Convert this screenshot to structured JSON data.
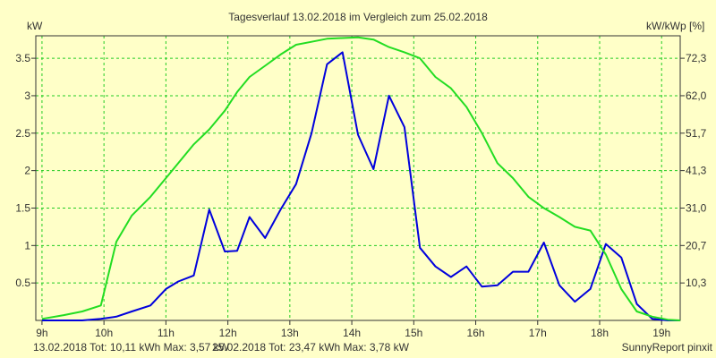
{
  "chart_data": {
    "type": "line",
    "title": "Tagesverlauf 13.02.2018 im Vergleich zum 25.02.2018",
    "ylabel_left": "kW",
    "ylabel_right": "kW/kWp [%]",
    "x_ticks": [
      "9h",
      "10h",
      "11h",
      "12h",
      "13h",
      "14h",
      "15h",
      "16h",
      "17h",
      "18h",
      "19h"
    ],
    "y_ticks_left": [
      "0.5",
      "1",
      "1.5",
      "2",
      "2.5",
      "3",
      "3.5"
    ],
    "y_ticks_right": [
      "10,3",
      "20,7",
      "31,0",
      "41,3",
      "51,7",
      "62,0",
      "72,3"
    ],
    "xlim": [
      8.9,
      19.3
    ],
    "ylim": [
      0,
      3.8
    ],
    "grid": true,
    "series": [
      {
        "name": "13.02.2018",
        "color": "#0000dd",
        "x": [
          9.0,
          9.35,
          9.65,
          9.95,
          10.2,
          10.45,
          10.75,
          11.0,
          11.2,
          11.45,
          11.7,
          11.95,
          12.15,
          12.35,
          12.6,
          12.85,
          13.1,
          13.35,
          13.6,
          13.85,
          14.1,
          14.35,
          14.6,
          14.85,
          15.1,
          15.35,
          15.6,
          15.85,
          16.1,
          16.35,
          16.6,
          16.85,
          17.1,
          17.35,
          17.6,
          17.85,
          18.1,
          18.35,
          18.6,
          18.85,
          19.1,
          19.3
        ],
        "y": [
          0.0,
          0.0,
          0.0,
          0.02,
          0.05,
          0.12,
          0.2,
          0.42,
          0.52,
          0.6,
          1.48,
          0.92,
          0.93,
          1.38,
          1.1,
          1.48,
          1.82,
          2.5,
          3.42,
          3.58,
          2.48,
          2.02,
          3.0,
          2.58,
          0.97,
          0.72,
          0.58,
          0.72,
          0.45,
          0.47,
          0.65,
          0.65,
          1.04,
          0.47,
          0.25,
          0.42,
          1.02,
          0.84,
          0.22,
          0.02,
          0.0,
          0.0
        ]
      },
      {
        "name": "25.02.2018",
        "color": "#22dd22",
        "x": [
          9.0,
          9.35,
          9.65,
          9.95,
          10.2,
          10.45,
          10.75,
          11.0,
          11.2,
          11.45,
          11.7,
          11.95,
          12.15,
          12.35,
          12.6,
          12.85,
          13.1,
          13.35,
          13.6,
          13.85,
          14.1,
          14.35,
          14.6,
          14.85,
          15.1,
          15.35,
          15.6,
          15.85,
          16.1,
          16.35,
          16.6,
          16.85,
          17.1,
          17.35,
          17.6,
          17.85,
          18.1,
          18.35,
          18.6,
          18.85,
          19.1,
          19.3
        ],
        "y": [
          0.02,
          0.07,
          0.12,
          0.2,
          1.05,
          1.4,
          1.65,
          1.9,
          2.1,
          2.35,
          2.55,
          2.8,
          3.05,
          3.25,
          3.4,
          3.55,
          3.68,
          3.72,
          3.76,
          3.77,
          3.78,
          3.75,
          3.65,
          3.58,
          3.5,
          3.25,
          3.1,
          2.85,
          2.5,
          2.1,
          1.9,
          1.65,
          1.5,
          1.38,
          1.25,
          1.2,
          0.88,
          0.42,
          0.12,
          0.05,
          0.01,
          0.0
        ]
      }
    ]
  },
  "footer": {
    "series1_text": "13.02.2018 Tot: 10,11 kWh Max: 3,57 kW",
    "series2_text": "25.02.2018 Tot: 23,47 kWh Max: 3,78 kW",
    "credit": "SunnyReport pinxit"
  }
}
